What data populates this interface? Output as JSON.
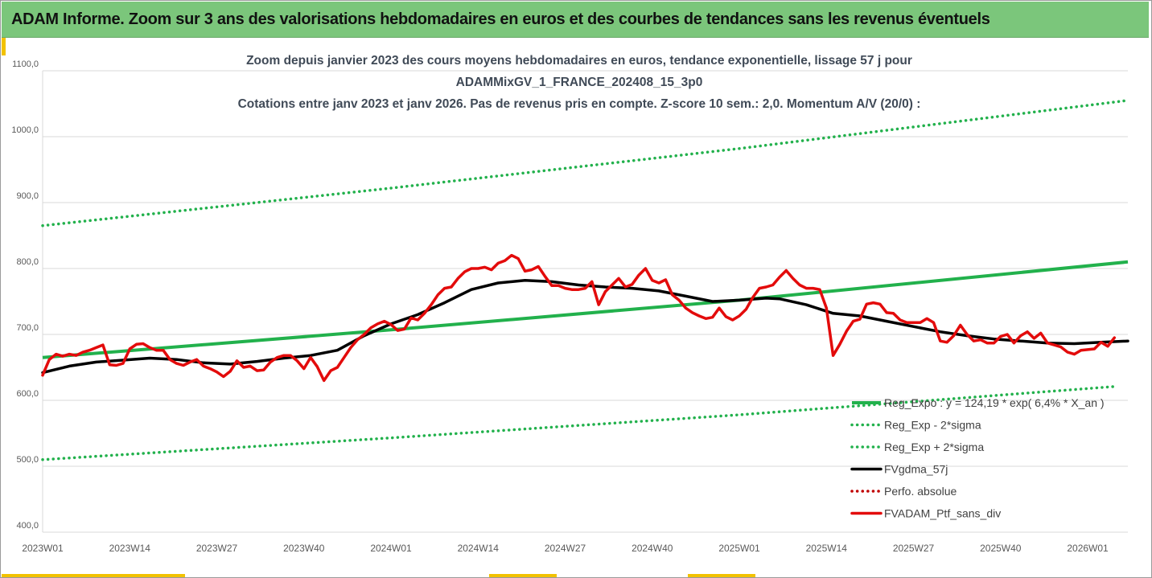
{
  "banner": {
    "title": "ADAM Informe. Zoom sur 3 ans des valorisations hebdomadaires en euros et des courbes de tendances sans les revenus éventuels"
  },
  "colors": {
    "banner_bg": "#7bc67b",
    "accent": "#f2c200",
    "trend_green": "#22b14c",
    "smooth_black": "#000000",
    "portfolio_red": "#e30b0b",
    "perf_red": "#c00000"
  },
  "chart_data": {
    "type": "line",
    "title_lines": [
      "Zoom depuis janvier 2023 des cours moyens hebdomadaires  en euros, tendance exponentielle, lissage 57 j pour",
      "ADAMMixGV_1_FRANCE_202408_15_3p0",
      "Cotations  entre janv 2023 et janv 2026. Pas de revenus pris en compte. Z-score 10 sem.: 2,0. Momentum A/V (20/0) :"
    ],
    "ylim": [
      400,
      1100
    ],
    "y_ticks": [
      "400,0",
      "500,0",
      "600,0",
      "700,0",
      "800,0",
      "900,0",
      "1000,0",
      "1100,0"
    ],
    "x_ticks": [
      "2023W01",
      "2023W14",
      "2023W27",
      "2023W40",
      "2024W01",
      "2024W14",
      "2024W27",
      "2024W40",
      "2025W01",
      "2025W14",
      "2025W27",
      "2025W40",
      "2026W01"
    ],
    "x_range_weeks": [
      0,
      162
    ],
    "series": [
      {
        "name": "Reg_Expo : y = 124,19 * exp( 6,4% *  X_an )",
        "style": "solid",
        "color": "#22b14c",
        "points": [
          [
            0,
            665
          ],
          [
            52,
            707
          ],
          [
            104,
            752
          ],
          [
            162,
            810
          ]
        ]
      },
      {
        "name": "Reg_Exp - 2*sigma",
        "style": "dotted",
        "color": "#22b14c",
        "points": [
          [
            0,
            510
          ],
          [
            52,
            543
          ],
          [
            104,
            578
          ],
          [
            160,
            621
          ]
        ]
      },
      {
        "name": "Reg_Exp + 2*sigma",
        "style": "dotted",
        "color": "#22b14c",
        "points": [
          [
            0,
            865
          ],
          [
            52,
            922
          ],
          [
            104,
            982
          ],
          [
            162,
            1055
          ]
        ]
      },
      {
        "name": "FVgdma_57j",
        "style": "solid",
        "color": "#000000",
        "points": [
          [
            0,
            642
          ],
          [
            4,
            652
          ],
          [
            8,
            658
          ],
          [
            12,
            661
          ],
          [
            16,
            664
          ],
          [
            20,
            662
          ],
          [
            24,
            657
          ],
          [
            28,
            655
          ],
          [
            32,
            659
          ],
          [
            36,
            664
          ],
          [
            40,
            668
          ],
          [
            44,
            676
          ],
          [
            48,
            698
          ],
          [
            52,
            716
          ],
          [
            56,
            730
          ],
          [
            60,
            748
          ],
          [
            64,
            768
          ],
          [
            68,
            778
          ],
          [
            72,
            782
          ],
          [
            76,
            780
          ],
          [
            80,
            775
          ],
          [
            84,
            772
          ],
          [
            88,
            770
          ],
          [
            92,
            766
          ],
          [
            96,
            758
          ],
          [
            100,
            750
          ],
          [
            104,
            752
          ],
          [
            108,
            755
          ],
          [
            110,
            754
          ],
          [
            114,
            745
          ],
          [
            118,
            732
          ],
          [
            122,
            728
          ],
          [
            126,
            720
          ],
          [
            130,
            712
          ],
          [
            134,
            704
          ],
          [
            138,
            698
          ],
          [
            142,
            693
          ],
          [
            146,
            690
          ],
          [
            150,
            687
          ],
          [
            154,
            686
          ],
          [
            158,
            688
          ],
          [
            162,
            690
          ]
        ]
      },
      {
        "name": "Perfo. absolue",
        "style": "dotted",
        "color": "#c00000",
        "points": []
      },
      {
        "name": "FVADAM_Ptf_sans_div",
        "style": "solid",
        "color": "#e30b0b",
        "points": [
          [
            0,
            638
          ],
          [
            1,
            662
          ],
          [
            2,
            670
          ],
          [
            3,
            667
          ],
          [
            4,
            670
          ],
          [
            5,
            668
          ],
          [
            6,
            673
          ],
          [
            7,
            676
          ],
          [
            8,
            680
          ],
          [
            9,
            684
          ],
          [
            10,
            654
          ],
          [
            11,
            653
          ],
          [
            12,
            656
          ],
          [
            13,
            678
          ],
          [
            14,
            685
          ],
          [
            15,
            686
          ],
          [
            16,
            680
          ],
          [
            17,
            676
          ],
          [
            18,
            676
          ],
          [
            19,
            662
          ],
          [
            20,
            656
          ],
          [
            21,
            653
          ],
          [
            22,
            658
          ],
          [
            23,
            662
          ],
          [
            24,
            652
          ],
          [
            25,
            648
          ],
          [
            26,
            643
          ],
          [
            27,
            636
          ],
          [
            28,
            644
          ],
          [
            29,
            660
          ],
          [
            30,
            650
          ],
          [
            31,
            652
          ],
          [
            32,
            645
          ],
          [
            33,
            646
          ],
          [
            34,
            658
          ],
          [
            35,
            665
          ],
          [
            36,
            668
          ],
          [
            37,
            668
          ],
          [
            38,
            660
          ],
          [
            39,
            648
          ],
          [
            40,
            665
          ],
          [
            41,
            651
          ],
          [
            42,
            630
          ],
          [
            43,
            645
          ],
          [
            44,
            650
          ],
          [
            45,
            665
          ],
          [
            46,
            680
          ],
          [
            47,
            692
          ],
          [
            48,
            700
          ],
          [
            49,
            710
          ],
          [
            50,
            716
          ],
          [
            51,
            720
          ],
          [
            52,
            715
          ],
          [
            53,
            706
          ],
          [
            54,
            708
          ],
          [
            55,
            725
          ],
          [
            56,
            722
          ],
          [
            57,
            732
          ],
          [
            58,
            745
          ],
          [
            59,
            760
          ],
          [
            60,
            770
          ],
          [
            61,
            772
          ],
          [
            62,
            785
          ],
          [
            63,
            795
          ],
          [
            64,
            800
          ],
          [
            65,
            800
          ],
          [
            66,
            802
          ],
          [
            67,
            798
          ],
          [
            68,
            808
          ],
          [
            69,
            812
          ],
          [
            70,
            820
          ],
          [
            71,
            815
          ],
          [
            72,
            796
          ],
          [
            73,
            798
          ],
          [
            74,
            803
          ],
          [
            75,
            788
          ],
          [
            76,
            774
          ],
          [
            77,
            774
          ],
          [
            78,
            770
          ],
          [
            79,
            768
          ],
          [
            80,
            768
          ],
          [
            81,
            770
          ],
          [
            82,
            780
          ],
          [
            83,
            745
          ],
          [
            84,
            765
          ],
          [
            85,
            775
          ],
          [
            86,
            785
          ],
          [
            87,
            772
          ],
          [
            88,
            776
          ],
          [
            89,
            790
          ],
          [
            90,
            800
          ],
          [
            91,
            782
          ],
          [
            92,
            778
          ],
          [
            93,
            783
          ],
          [
            94,
            760
          ],
          [
            95,
            752
          ],
          [
            96,
            740
          ],
          [
            97,
            733
          ],
          [
            98,
            728
          ],
          [
            99,
            724
          ],
          [
            100,
            726
          ],
          [
            101,
            740
          ],
          [
            102,
            727
          ],
          [
            103,
            722
          ],
          [
            104,
            728
          ],
          [
            105,
            738
          ],
          [
            106,
            756
          ],
          [
            107,
            770
          ],
          [
            108,
            772
          ],
          [
            109,
            775
          ],
          [
            110,
            787
          ],
          [
            111,
            797
          ],
          [
            112,
            785
          ],
          [
            113,
            775
          ],
          [
            114,
            770
          ],
          [
            115,
            770
          ],
          [
            116,
            768
          ],
          [
            117,
            740
          ],
          [
            118,
            668
          ],
          [
            119,
            685
          ],
          [
            120,
            705
          ],
          [
            121,
            720
          ],
          [
            122,
            723
          ],
          [
            123,
            746
          ],
          [
            124,
            748
          ],
          [
            125,
            746
          ],
          [
            126,
            733
          ],
          [
            127,
            732
          ],
          [
            128,
            722
          ],
          [
            129,
            718
          ],
          [
            130,
            718
          ],
          [
            131,
            718
          ],
          [
            132,
            724
          ],
          [
            133,
            718
          ],
          [
            134,
            690
          ],
          [
            135,
            688
          ],
          [
            136,
            698
          ],
          [
            137,
            714
          ],
          [
            138,
            700
          ],
          [
            139,
            690
          ],
          [
            140,
            692
          ],
          [
            141,
            687
          ],
          [
            142,
            687
          ],
          [
            143,
            697
          ],
          [
            144,
            700
          ],
          [
            145,
            687
          ],
          [
            146,
            698
          ],
          [
            147,
            704
          ],
          [
            148,
            694
          ],
          [
            149,
            702
          ],
          [
            150,
            687
          ],
          [
            151,
            684
          ],
          [
            152,
            681
          ],
          [
            153,
            673
          ],
          [
            154,
            670
          ],
          [
            155,
            676
          ],
          [
            156,
            677
          ],
          [
            157,
            678
          ],
          [
            158,
            688
          ],
          [
            159,
            682
          ],
          [
            160,
            695
          ]
        ]
      }
    ]
  }
}
